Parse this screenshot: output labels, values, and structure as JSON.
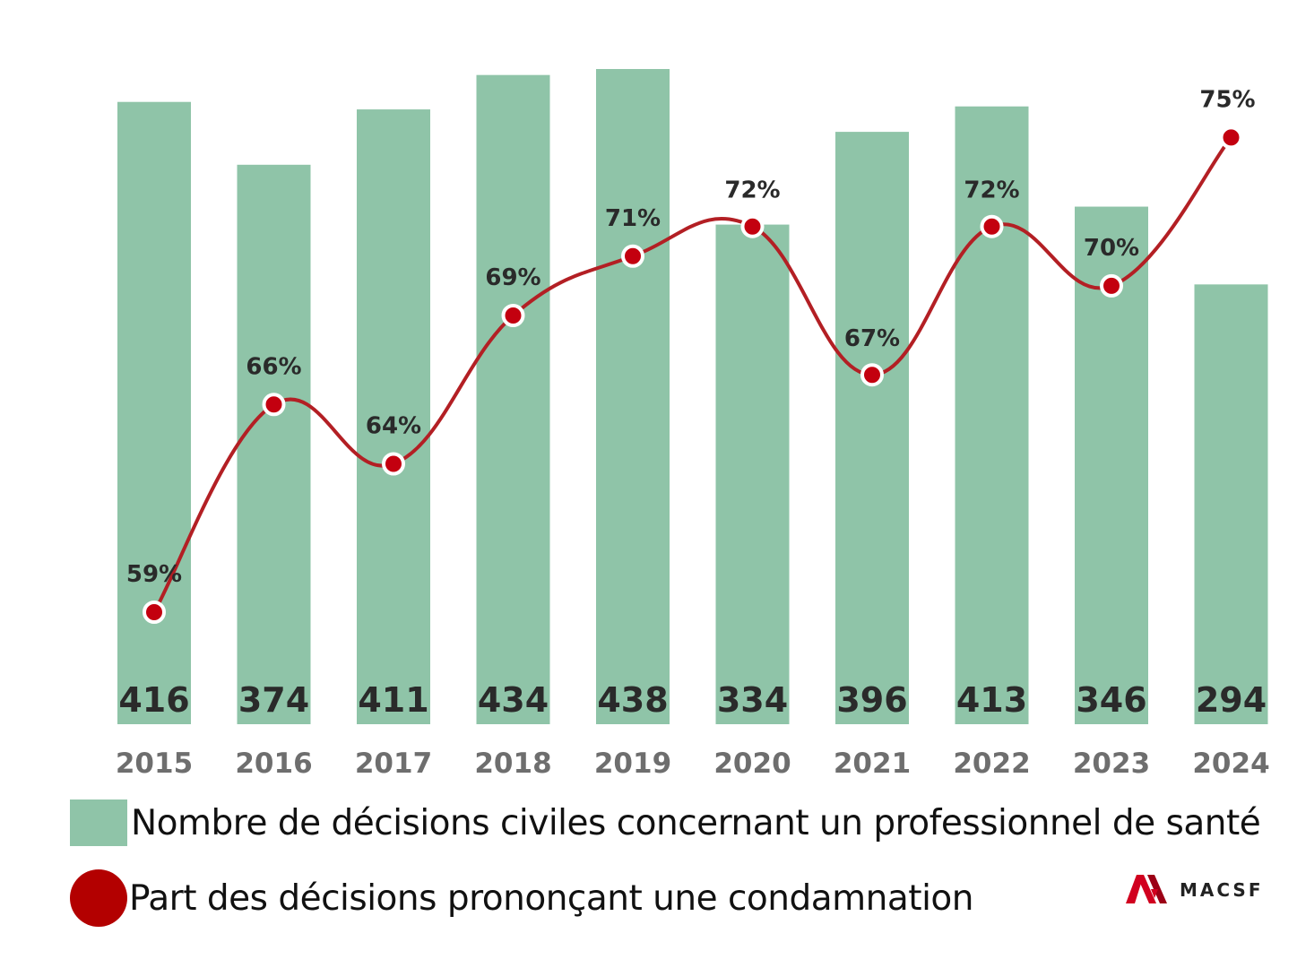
{
  "chart_data": {
    "type": "bar+line",
    "categories": [
      "2015",
      "2016",
      "2017",
      "2018",
      "2019",
      "2020",
      "2021",
      "2022",
      "2023",
      "2024"
    ],
    "series": [
      {
        "name": "Nombre de décisions civiles concernant un professionnel de santé",
        "type": "bar",
        "color": "#8fc4a8",
        "values": [
          416,
          374,
          411,
          434,
          438,
          334,
          396,
          413,
          346,
          294
        ]
      },
      {
        "name": "Part des décisions prononçant une condamnation",
        "type": "line",
        "color": "#b30000",
        "unit": "%",
        "values": [
          59,
          66,
          64,
          69,
          71,
          72,
          67,
          72,
          70,
          75
        ]
      }
    ],
    "bar_value_labels": [
      "416",
      "374",
      "411",
      "434",
      "438",
      "334",
      "396",
      "413",
      "346",
      "294"
    ],
    "line_value_labels": [
      "59%",
      "66%",
      "64%",
      "69%",
      "71%",
      "72%",
      "67%",
      "72%",
      "70%",
      "75%"
    ]
  },
  "legend": {
    "bar_label": "Nombre de décisions civiles concernant un professionnel de santé",
    "line_label": "Part des décisions prononçant une condamnation"
  },
  "logo": {
    "text": "MACSF",
    "color": "#d1001f"
  }
}
